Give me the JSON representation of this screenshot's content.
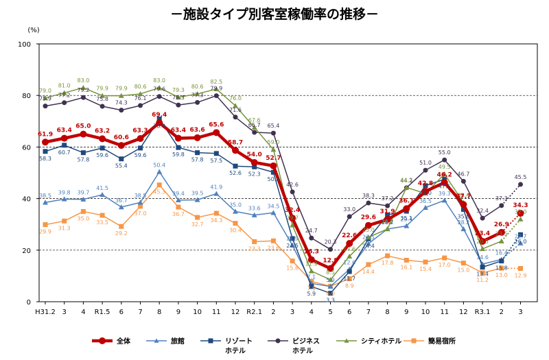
{
  "chart_data": {
    "type": "line",
    "title": "－施設タイプ別客室稼働率の推移－",
    "y_unit": "(%)",
    "ylim": [
      0,
      100
    ],
    "y_ticks": [
      "0",
      "20",
      "40",
      "60",
      "80",
      "100"
    ],
    "grid": "horizontal dashed",
    "legend_position": "bottom",
    "categories": [
      "H31.2",
      "3",
      "4",
      "R1.5",
      "6",
      "7",
      "8",
      "9",
      "10",
      "11",
      "12",
      "R2.1",
      "2",
      "3",
      "4",
      "5",
      "6",
      "7",
      "8",
      "9",
      "10",
      "11",
      "12",
      "R3.1",
      "2",
      "3"
    ],
    "series": [
      {
        "name": "全体",
        "color": "#c00000",
        "values": [
          61.9,
          63.4,
          65.0,
          63.2,
          60.6,
          63.3,
          69.4,
          63.4,
          63.6,
          65.6,
          58.7,
          54.0,
          52.7,
          32.4,
          16.3,
          12.9,
          22.6,
          29.6,
          31.9,
          36.1,
          42.8,
          46.2,
          37.7,
          23.4,
          26.9,
          34.3
        ],
        "labels": [
          "61.9",
          "63.4",
          "65.0",
          "63.2",
          "60.6",
          "63.3",
          "69.4",
          "63.4",
          "63.6",
          "65.6",
          "58.7",
          "54.0",
          "52.7",
          "32.4",
          "16.3",
          "12.9",
          "22.6",
          "29.6",
          "31.9",
          "36.1",
          "42.8",
          "46.2",
          "37.7",
          "23.4",
          "26.9",
          "34.3"
        ]
      },
      {
        "name": "旅館",
        "color": "#4f81bd",
        "values": [
          38.5,
          39.8,
          39.7,
          41.5,
          36.7,
          38.5,
          50.4,
          39.4,
          39.5,
          41.9,
          35.0,
          33.6,
          34.5,
          21.9,
          7.1,
          5.9,
          12.6,
          22.5,
          28.2,
          29.4,
          36.5,
          39.3,
          28.2,
          14.6,
          16.4,
          22.7
        ],
        "labels": [
          "38.5",
          "39.8",
          "39.7",
          "41.5",
          "36.7",
          "38.5",
          "50.4",
          "39.4",
          "39.5",
          "41.9",
          "35.0",
          "33.6",
          "34.5",
          "21.9",
          "7.1",
          "5.9",
          "12.6",
          "22.5",
          "28.2",
          "29.4",
          "36.5",
          "39.3",
          "28.2",
          "14.6",
          "16.4",
          "22.7"
        ]
      },
      {
        "name": "リゾートホテル",
        "color": "#1f497d",
        "values": [
          58.3,
          60.7,
          57.8,
          59.6,
          55.4,
          59.6,
          70.9,
          59.8,
          57.8,
          57.5,
          52.6,
          52.3,
          50.2,
          24.5,
          5.9,
          3.3,
          11.7,
          24.4,
          33.7,
          35.1,
          45.0,
          47.5,
          35.8,
          13.4,
          15.8,
          26.0
        ],
        "labels": [
          "58.3",
          "60.7",
          "57.8",
          "59.6",
          "55.4",
          "59.6",
          "70.9",
          "59.8",
          "57.8",
          "57.5",
          "52.6",
          "52.3",
          "50.2",
          "24.5",
          "5.9",
          "3.3",
          "11.7",
          "24.4",
          "33.7",
          "35.1",
          "45.0",
          "47.5",
          "35.8",
          "13.4",
          "15.8",
          "26.0"
        ]
      },
      {
        "name": "ビジネスホテル",
        "color": "#403151",
        "values": [
          75.9,
          77.2,
          79.2,
          75.8,
          74.3,
          76.1,
          79.6,
          76.3,
          77.3,
          79.9,
          71.6,
          65.7,
          65.4,
          42.6,
          24.7,
          20.3,
          33.0,
          38.3,
          37.2,
          44.2,
          51.0,
          55.0,
          46.7,
          32.4,
          37.3,
          45.5
        ],
        "labels": [
          "75.9",
          "77.2",
          "79.2",
          "75.8",
          "74.3",
          "76.1",
          "79.6",
          "76.3",
          "77.3",
          "79.9",
          "71.6",
          "65.7",
          "65.4",
          "42.6",
          "24.7",
          "20.3",
          "33.0",
          "38.3",
          "37.2",
          "44.2",
          "51.0",
          "55.0",
          "46.7",
          "32.4",
          "37.3",
          "45.5"
        ]
      },
      {
        "name": "シティホテル",
        "color": "#77933c",
        "values": [
          79.0,
          81.0,
          83.0,
          79.9,
          79.9,
          80.6,
          83.0,
          79.3,
          80.6,
          82.5,
          76.0,
          67.6,
          59.0,
          29.7,
          11.9,
          8.5,
          17.6,
          25.0,
          28.2,
          44.3,
          42.0,
          49.5,
          38.4,
          20.5,
          23.5,
          32.0
        ],
        "labels": [
          "79.0",
          "81.0",
          "83.0",
          "79.9",
          "79.9",
          "80.6",
          "83.0",
          "79.3",
          "80.6",
          "82.5",
          "76.0",
          "67.6",
          "59.0",
          "29.7",
          "11.9",
          "8.5",
          "17.6",
          "25.0",
          "28.2",
          "44.3",
          "",
          "49.5",
          "38.4",
          "20.5",
          "23.5",
          "32.0"
        ]
      },
      {
        "name": "簡易宿所",
        "color": "#f79646",
        "values": [
          29.9,
          31.3,
          35.0,
          33.5,
          29.2,
          37.0,
          45.3,
          36.7,
          32.7,
          34.3,
          30.4,
          23.3,
          23.6,
          15.8,
          7.9,
          6.0,
          8.9,
          14.4,
          17.8,
          16.1,
          15.4,
          17.0,
          15.0,
          11.2,
          13.0,
          12.9
        ],
        "labels": [
          "29.9",
          "31.3",
          "35.0",
          "33.5",
          "29.2",
          "37.0",
          "45.3",
          "36.7",
          "32.7",
          "34.3",
          "30.4",
          "23.3",
          "23.6",
          "15.8",
          "7.9",
          "6.0",
          "8.9",
          "14.4",
          "17.8",
          "16.1",
          "15.4",
          "17.0",
          "15.0",
          "11.2",
          "13.0",
          "12.9"
        ]
      }
    ],
    "legend": [
      {
        "label": "全体",
        "color": "#c00000",
        "marker": "circle"
      },
      {
        "label": "旅館",
        "color": "#4f81bd",
        "marker": "triangle"
      },
      {
        "label": "リゾート\nホテル",
        "color": "#1f497d",
        "marker": "square"
      },
      {
        "label": "ビジネス\nホテル",
        "color": "#403151",
        "marker": "circle"
      },
      {
        "label": "シティホテル",
        "color": "#77933c",
        "marker": "triangle"
      },
      {
        "label": "簡易宿所",
        "color": "#f79646",
        "marker": "square"
      }
    ]
  }
}
